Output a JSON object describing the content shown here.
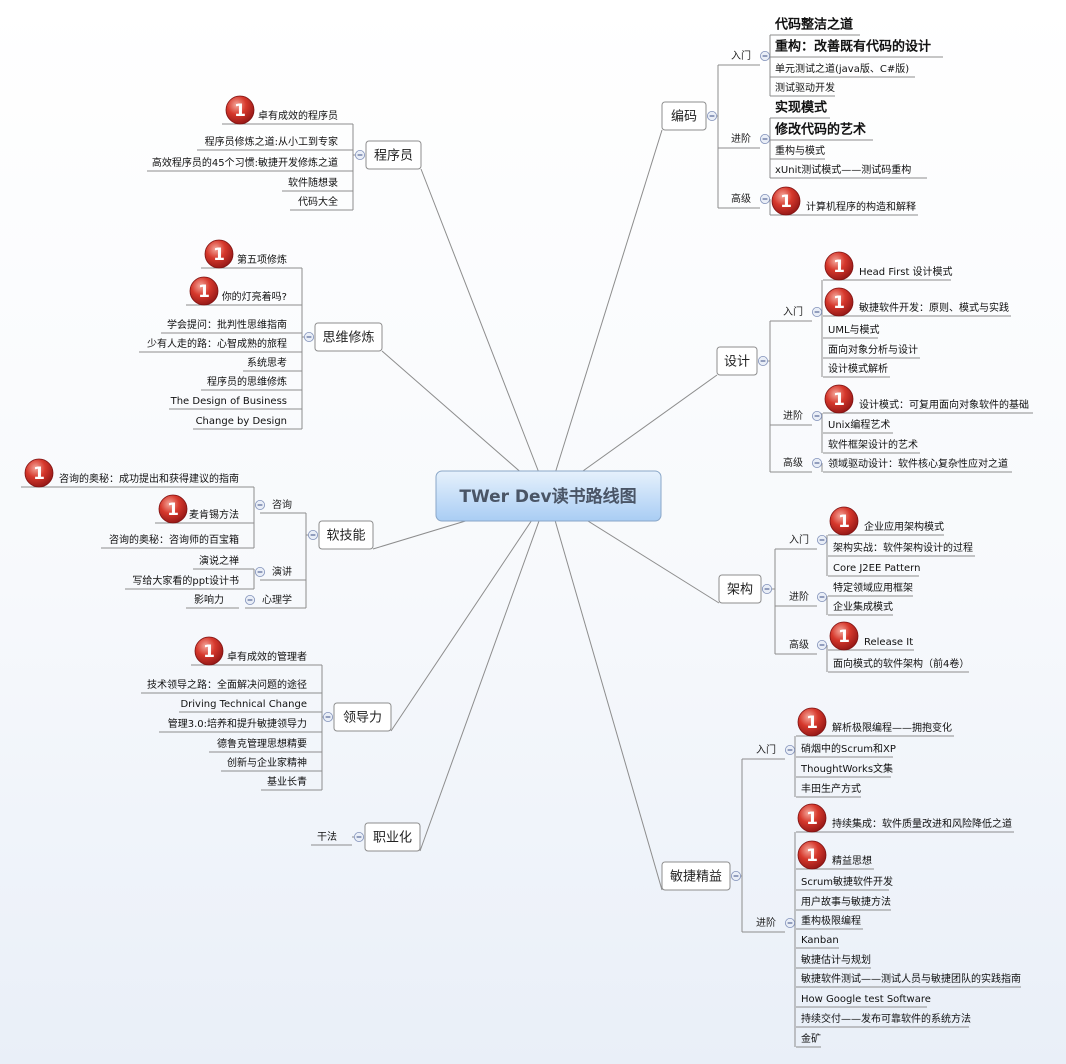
{
  "root": "TWer Dev读书路线图",
  "branches": {
    "coding": {
      "label": "编码",
      "groups": [
        {
          "label": "入门",
          "items": [
            {
              "text": "代码整洁之道"
            },
            {
              "text": "重构：改善既有代码的设计"
            },
            {
              "text": "单元测试之道(java版、C#版)"
            },
            {
              "text": "测试驱动开发"
            }
          ]
        },
        {
          "label": "进阶",
          "items": [
            {
              "text": "实现模式"
            },
            {
              "text": "修改代码的艺术"
            },
            {
              "text": "重构与模式"
            },
            {
              "text": "xUnit测试模式——测试码重构"
            }
          ]
        },
        {
          "label": "高级",
          "items": [
            {
              "text": "计算机程序的构造和解释",
              "badge": "1"
            }
          ]
        }
      ]
    },
    "design": {
      "label": "设计",
      "groups": [
        {
          "label": "入门",
          "items": [
            {
              "text": "Head First 设计模式",
              "badge": "1"
            },
            {
              "text": "敏捷软件开发：原则、模式与实践",
              "badge": "1"
            },
            {
              "text": "UML与模式"
            },
            {
              "text": "面向对象分析与设计"
            },
            {
              "text": "设计模式解析"
            }
          ]
        },
        {
          "label": "进阶",
          "items": [
            {
              "text": "设计模式：可复用面向对象软件的基础",
              "badge": "1"
            },
            {
              "text": "Unix编程艺术"
            },
            {
              "text": "软件框架设计的艺术"
            }
          ]
        },
        {
          "label": "高级",
          "items": [
            {
              "text": "领域驱动设计：软件核心复杂性应对之道"
            }
          ]
        }
      ]
    },
    "architecture": {
      "label": "架构",
      "groups": [
        {
          "label": "入门",
          "items": [
            {
              "text": "企业应用架构模式",
              "badge": "1"
            },
            {
              "text": "架构实战：软件架构设计的过程"
            },
            {
              "text": "Core J2EE Pattern"
            }
          ]
        },
        {
          "label": "进阶",
          "items": [
            {
              "text": "特定领域应用框架"
            },
            {
              "text": "企业集成模式"
            }
          ]
        },
        {
          "label": "高级",
          "items": [
            {
              "text": "Release It",
              "badge": "1"
            },
            {
              "text": "面向模式的软件架构（前4卷）"
            }
          ]
        }
      ]
    },
    "agile": {
      "label": "敏捷精益",
      "groups": [
        {
          "label": "入门",
          "items": [
            {
              "text": "解析极限编程——拥抱变化",
              "badge": "1"
            },
            {
              "text": "硝烟中的Scrum和XP"
            },
            {
              "text": "ThoughtWorks文集"
            },
            {
              "text": "丰田生产方式"
            }
          ]
        },
        {
          "label": "进阶",
          "items": [
            {
              "text": "持续集成：软件质量改进和风险降低之道",
              "badge": "1"
            },
            {
              "text": "精益思想",
              "badge": "1"
            },
            {
              "text": "Scrum敏捷软件开发"
            },
            {
              "text": "用户故事与敏捷方法"
            },
            {
              "text": "重构极限编程"
            },
            {
              "text": "Kanban"
            },
            {
              "text": "敏捷估计与规划"
            },
            {
              "text": "敏捷软件测试——测试人员与敏捷团队的实践指南"
            },
            {
              "text": "How Google test Software"
            },
            {
              "text": "持续交付——发布可靠软件的系统方法"
            },
            {
              "text": "金矿"
            }
          ]
        }
      ]
    },
    "programmer": {
      "label": "程序员",
      "items": [
        {
          "text": "卓有成效的程序员",
          "badge": "1"
        },
        {
          "text": "程序员修炼之道:从小工到专家"
        },
        {
          "text": "高效程序员的45个习惯:敏捷开发修炼之道"
        },
        {
          "text": "软件随想录"
        },
        {
          "text": "代码大全"
        }
      ]
    },
    "thinking": {
      "label": "思维修炼",
      "items": [
        {
          "text": "第五项修炼",
          "badge": "1"
        },
        {
          "text": "你的灯亮着吗?",
          "badge": "1"
        },
        {
          "text": "学会提问：批判性思维指南"
        },
        {
          "text": "少有人走的路：心智成熟的旅程"
        },
        {
          "text": "系统思考"
        },
        {
          "text": "程序员的思维修炼"
        },
        {
          "text": "The Design of Business"
        },
        {
          "text": "Change by Design"
        }
      ]
    },
    "softskills": {
      "label": "软技能",
      "groups": [
        {
          "label": "咨询",
          "items": [
            {
              "text": "咨询的奥秘：成功提出和获得建议的指南",
              "badge": "1"
            },
            {
              "text": "麦肯锡方法",
              "badge": "1"
            },
            {
              "text": "咨询的奥秘：咨询师的百宝箱"
            }
          ]
        },
        {
          "label": "演讲",
          "items": [
            {
              "text": "演说之禅"
            },
            {
              "text": "写给大家看的ppt设计书"
            }
          ]
        },
        {
          "label": "心理学",
          "items": [
            {
              "text": "影响力"
            }
          ]
        }
      ]
    },
    "leadership": {
      "label": "领导力",
      "items": [
        {
          "text": "卓有成效的管理者",
          "badge": "1"
        },
        {
          "text": "技术领导之路：全面解决问题的途径"
        },
        {
          "text": "Driving Technical Change"
        },
        {
          "text": "管理3.0:培养和提升敏捷领导力"
        },
        {
          "text": "德鲁克管理思想精要"
        },
        {
          "text": "创新与企业家精神"
        },
        {
          "text": "基业长青"
        }
      ]
    },
    "career": {
      "label": "职业化",
      "items": [
        {
          "text": "干法"
        }
      ]
    }
  },
  "colors": {
    "root_fill_top": "#e6f1fc",
    "root_fill_bottom": "#a9cdf4",
    "line": "#8d8d8d",
    "badge_red": "#c8201f"
  },
  "icons": {
    "priority": "priority-1-icon",
    "collapse": "collapse-minus-icon"
  }
}
